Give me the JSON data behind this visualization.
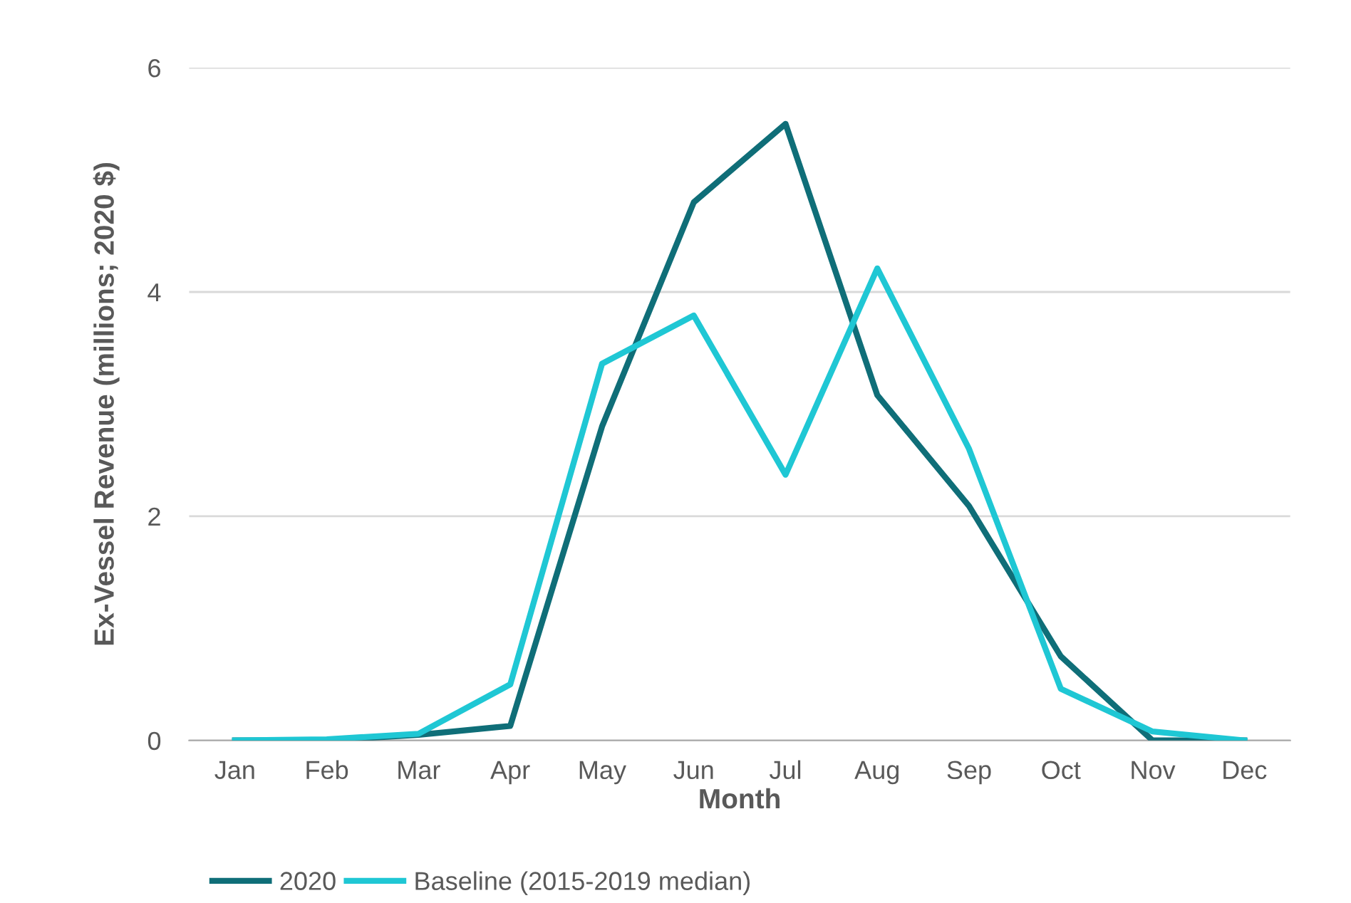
{
  "chart_data": {
    "type": "line",
    "xlabel": "Month",
    "ylabel": "Ex-Vessel Revenue (millions; 2020 $)",
    "categories": [
      "Jan",
      "Feb",
      "Mar",
      "Apr",
      "May",
      "Jun",
      "Jul",
      "Aug",
      "Sep",
      "Oct",
      "Nov",
      "Dec"
    ],
    "series": [
      {
        "name": "2020",
        "color": "#0f6e78",
        "values": [
          0,
          0,
          0.05,
          0.13,
          2.8,
          4.8,
          5.5,
          3.08,
          2.09,
          0.75,
          0,
          0
        ]
      },
      {
        "name": "Baseline (2015-2019 median)",
        "color": "#1fc7d4",
        "values": [
          0,
          0.01,
          0.06,
          0.5,
          3.36,
          3.79,
          2.37,
          4.21,
          2.6,
          0.46,
          0.08,
          0
        ]
      }
    ],
    "ylim": [
      0,
      6
    ],
    "yticks": [
      0,
      2,
      4,
      6
    ],
    "grid": "y",
    "legend": "bottom left",
    "marker": "none",
    "line_style": "solid"
  }
}
